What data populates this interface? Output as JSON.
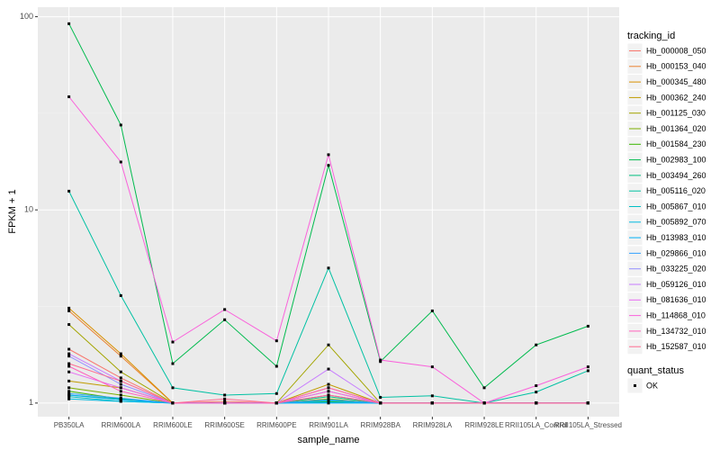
{
  "chart_data": {
    "type": "line",
    "x_label": "sample_name",
    "y_label": "FPKM + 1",
    "categories": [
      "PB350LA",
      "RRIM600LA",
      "RRIM600LE",
      "RRIM600SE",
      "RRIM600PE",
      "RRIM901LA",
      "RRIM928BA",
      "RRIM928LA",
      "RRIM928LE",
      "RRII105LA_Control",
      "RRII105LA_Stressed"
    ],
    "log_y": true,
    "grid": true,
    "legend_title": "tracking_id",
    "legend_position": "right",
    "shape_legend": {
      "title": "quant_status",
      "items": [
        "OK"
      ]
    },
    "ylim": [
      0.85,
      112
    ],
    "yticks": [
      1,
      10,
      100
    ],
    "series": [
      {
        "name": "Hb_000008_050",
        "color": "#F8766D",
        "values": [
          1.9,
          1.35,
          1,
          1.02,
          1,
          1.1,
          1,
          1,
          1,
          1,
          1
        ]
      },
      {
        "name": "Hb_000153_040",
        "color": "#EA8331",
        "values": [
          3.0,
          1.75,
          1,
          1,
          1,
          1.15,
          1,
          1,
          1,
          1,
          1
        ]
      },
      {
        "name": "Hb_000345_480",
        "color": "#D89000",
        "values": [
          3.1,
          1.8,
          1,
          1,
          1,
          1.2,
          1,
          1,
          1,
          1,
          1
        ]
      },
      {
        "name": "Hb_000362_240",
        "color": "#C09B00",
        "values": [
          1.3,
          1.2,
          1,
          1,
          1,
          1.25,
          1,
          1,
          1,
          1,
          1
        ]
      },
      {
        "name": "Hb_001125_030",
        "color": "#A3A500",
        "values": [
          2.55,
          1.45,
          1,
          1,
          1,
          2.0,
          1,
          1,
          1,
          1,
          1
        ]
      },
      {
        "name": "Hb_001364_020",
        "color": "#7CAE00",
        "values": [
          1.2,
          1.1,
          1,
          1,
          1,
          1.05,
          1,
          1,
          1,
          1,
          1
        ]
      },
      {
        "name": "Hb_001584_230",
        "color": "#39B600",
        "values": [
          1.15,
          1.05,
          1,
          1,
          1,
          1.02,
          1,
          1,
          1,
          1,
          1
        ]
      },
      {
        "name": "Hb_002983_100",
        "color": "#00BB4E",
        "values": [
          92,
          27.5,
          1.6,
          2.7,
          1.55,
          17,
          1.64,
          3.0,
          1.2,
          2.0,
          2.5
        ]
      },
      {
        "name": "Hb_003494_260",
        "color": "#00BF7D",
        "values": [
          1.1,
          1.05,
          1,
          1,
          1,
          1.08,
          1,
          1,
          1,
          1,
          1
        ]
      },
      {
        "name": "Hb_005116_020",
        "color": "#00C1A3",
        "values": [
          12.5,
          3.6,
          1.2,
          1.1,
          1.12,
          5.0,
          1.07,
          1.09,
          1,
          1.14,
          1.47
        ]
      },
      {
        "name": "Hb_005867_010",
        "color": "#00BFC4",
        "values": [
          1.08,
          1.02,
          1,
          1,
          1,
          1.03,
          1,
          1,
          1,
          1,
          1
        ]
      },
      {
        "name": "Hb_005892_070",
        "color": "#00BAE0",
        "values": [
          1.05,
          1.02,
          1,
          1,
          1,
          1.01,
          1,
          1,
          1,
          1,
          1
        ]
      },
      {
        "name": "Hb_013983_010",
        "color": "#00B0F6",
        "values": [
          1.1,
          1.04,
          1,
          1,
          1,
          1.0,
          1,
          1,
          1,
          1,
          1
        ]
      },
      {
        "name": "Hb_029866_010",
        "color": "#35A2FF",
        "values": [
          1.12,
          1.06,
          1,
          1,
          1,
          1.04,
          1,
          1,
          1,
          1,
          1
        ]
      },
      {
        "name": "Hb_033225_020",
        "color": "#9590FF",
        "values": [
          1.75,
          1.25,
          1,
          1,
          1,
          1.1,
          1,
          1,
          1,
          1,
          1
        ]
      },
      {
        "name": "Hb_059126_010",
        "color": "#C77CFF",
        "values": [
          1.8,
          1.3,
          1,
          1,
          1,
          1.5,
          1,
          1,
          1,
          1,
          1
        ]
      },
      {
        "name": "Hb_081636_010",
        "color": "#E76BF3",
        "values": [
          1.45,
          1.2,
          1,
          1,
          1,
          1.15,
          1,
          1,
          1,
          1,
          1
        ]
      },
      {
        "name": "Hb_114868_010",
        "color": "#FA62DB",
        "values": [
          38.5,
          17.7,
          2.07,
          3.05,
          2.1,
          19.3,
          1.67,
          1.54,
          1.0,
          1.23,
          1.54
        ]
      },
      {
        "name": "Hb_134732_010",
        "color": "#FF62BC",
        "values": [
          1.55,
          1.15,
          1,
          1,
          1,
          1.2,
          1,
          1,
          1,
          1,
          1
        ]
      },
      {
        "name": "Hb_152587_010",
        "color": "#FF6C91",
        "values": [
          1.6,
          1.3,
          1,
          1.05,
          1,
          1.1,
          1,
          1,
          1,
          1,
          1
        ]
      }
    ]
  }
}
